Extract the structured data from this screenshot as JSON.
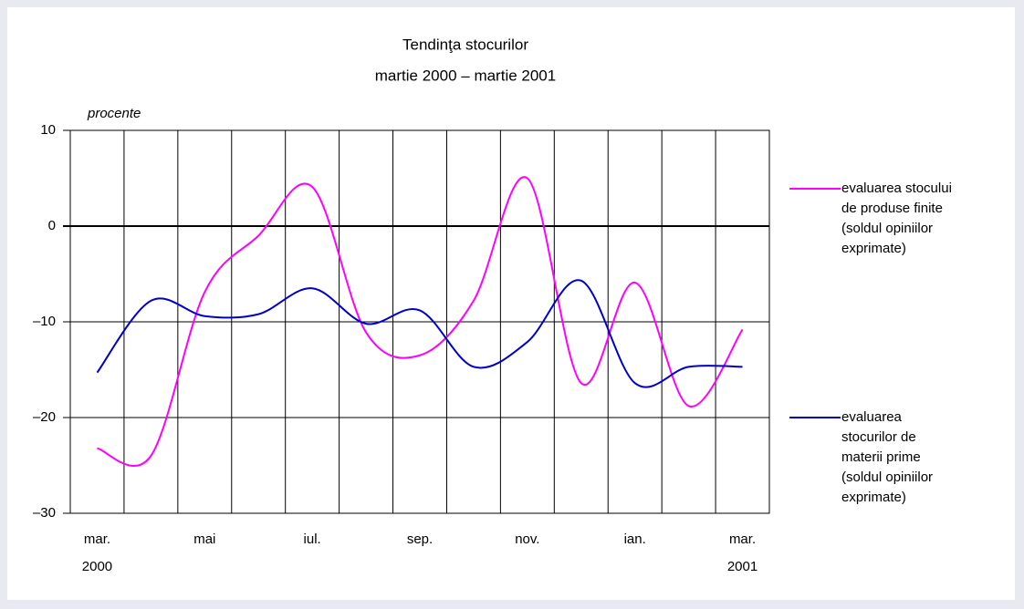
{
  "chart_data": {
    "type": "line",
    "title": "Tendinţa stocurilor",
    "subtitle": "martie 2000 – martie 2001",
    "y_label": "procente",
    "categories": [
      "mar.",
      null,
      "mai",
      null,
      "iul.",
      null,
      "sep.",
      null,
      "nov.",
      null,
      "ian.",
      null,
      "mar."
    ],
    "category_years": [
      "2000",
      null,
      null,
      null,
      null,
      null,
      null,
      null,
      null,
      null,
      null,
      null,
      "2001"
    ],
    "series": [
      {
        "name": "evaluarea stocului de produse finite (soldul opiniilor exprimate)",
        "color": "#ff00ff",
        "values": [
          -23.2,
          -24,
          -6.9,
          -1,
          4.1,
          -11.1,
          -13.5,
          -7.8,
          5,
          -16.4,
          -5.9,
          -18.8,
          -10.8
        ]
      },
      {
        "name": "evaluarea stocurilor de materii prime (soldul opiniilor exprimate)",
        "color": "#0000cc",
        "values": [
          -15.3,
          -7.8,
          -9.4,
          -9.2,
          -6.5,
          -10.2,
          -8.8,
          -14.7,
          -12.1,
          -5.7,
          -16.4,
          -14.7,
          -14.7
        ]
      }
    ],
    "ylim": [
      -30,
      10
    ],
    "yticks": [
      {
        "value": -30,
        "label": "–30"
      },
      {
        "value": -20,
        "label": "–20"
      },
      {
        "value": -10,
        "label": "–10"
      },
      0,
      10
    ],
    "grid": true
  }
}
